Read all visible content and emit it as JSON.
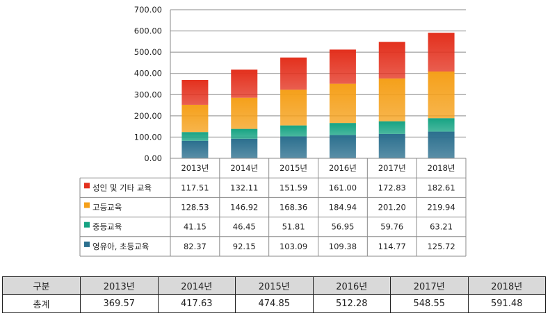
{
  "chart_data": {
    "type": "bar",
    "stacked": true,
    "categories": [
      "2013년",
      "2014년",
      "2015년",
      "2016년",
      "2017년",
      "2018년"
    ],
    "series": [
      {
        "name": "영유아, 초등교육",
        "color": "#2b6f8e",
        "values": [
          82.37,
          92.15,
          103.09,
          109.38,
          114.77,
          125.72
        ]
      },
      {
        "name": "중등교육",
        "color": "#16a383",
        "values": [
          41.15,
          46.45,
          51.81,
          56.95,
          59.76,
          63.21
        ]
      },
      {
        "name": "고등교육",
        "color": "#f5a01a",
        "values": [
          128.53,
          146.92,
          168.36,
          184.94,
          201.2,
          219.94
        ]
      },
      {
        "name": "성인 및 기타 교육",
        "color": "#e3301d",
        "values": [
          117.51,
          132.11,
          151.59,
          161.0,
          172.83,
          182.61
        ]
      }
    ],
    "yticks": [
      "0.00",
      "100.00",
      "200.00",
      "300.00",
      "400.00",
      "500.00",
      "600.00",
      "700.00"
    ],
    "ylim": [
      0,
      700
    ],
    "grid": true,
    "legend": "data-table"
  },
  "summary": {
    "header": [
      "구분",
      "2013년",
      "2014년",
      "2015년",
      "2016년",
      "2017년",
      "2018년"
    ],
    "row_label": "총계",
    "values": [
      "369.57",
      "417.63",
      "474.85",
      "512.28",
      "548.55",
      "591.48"
    ]
  }
}
